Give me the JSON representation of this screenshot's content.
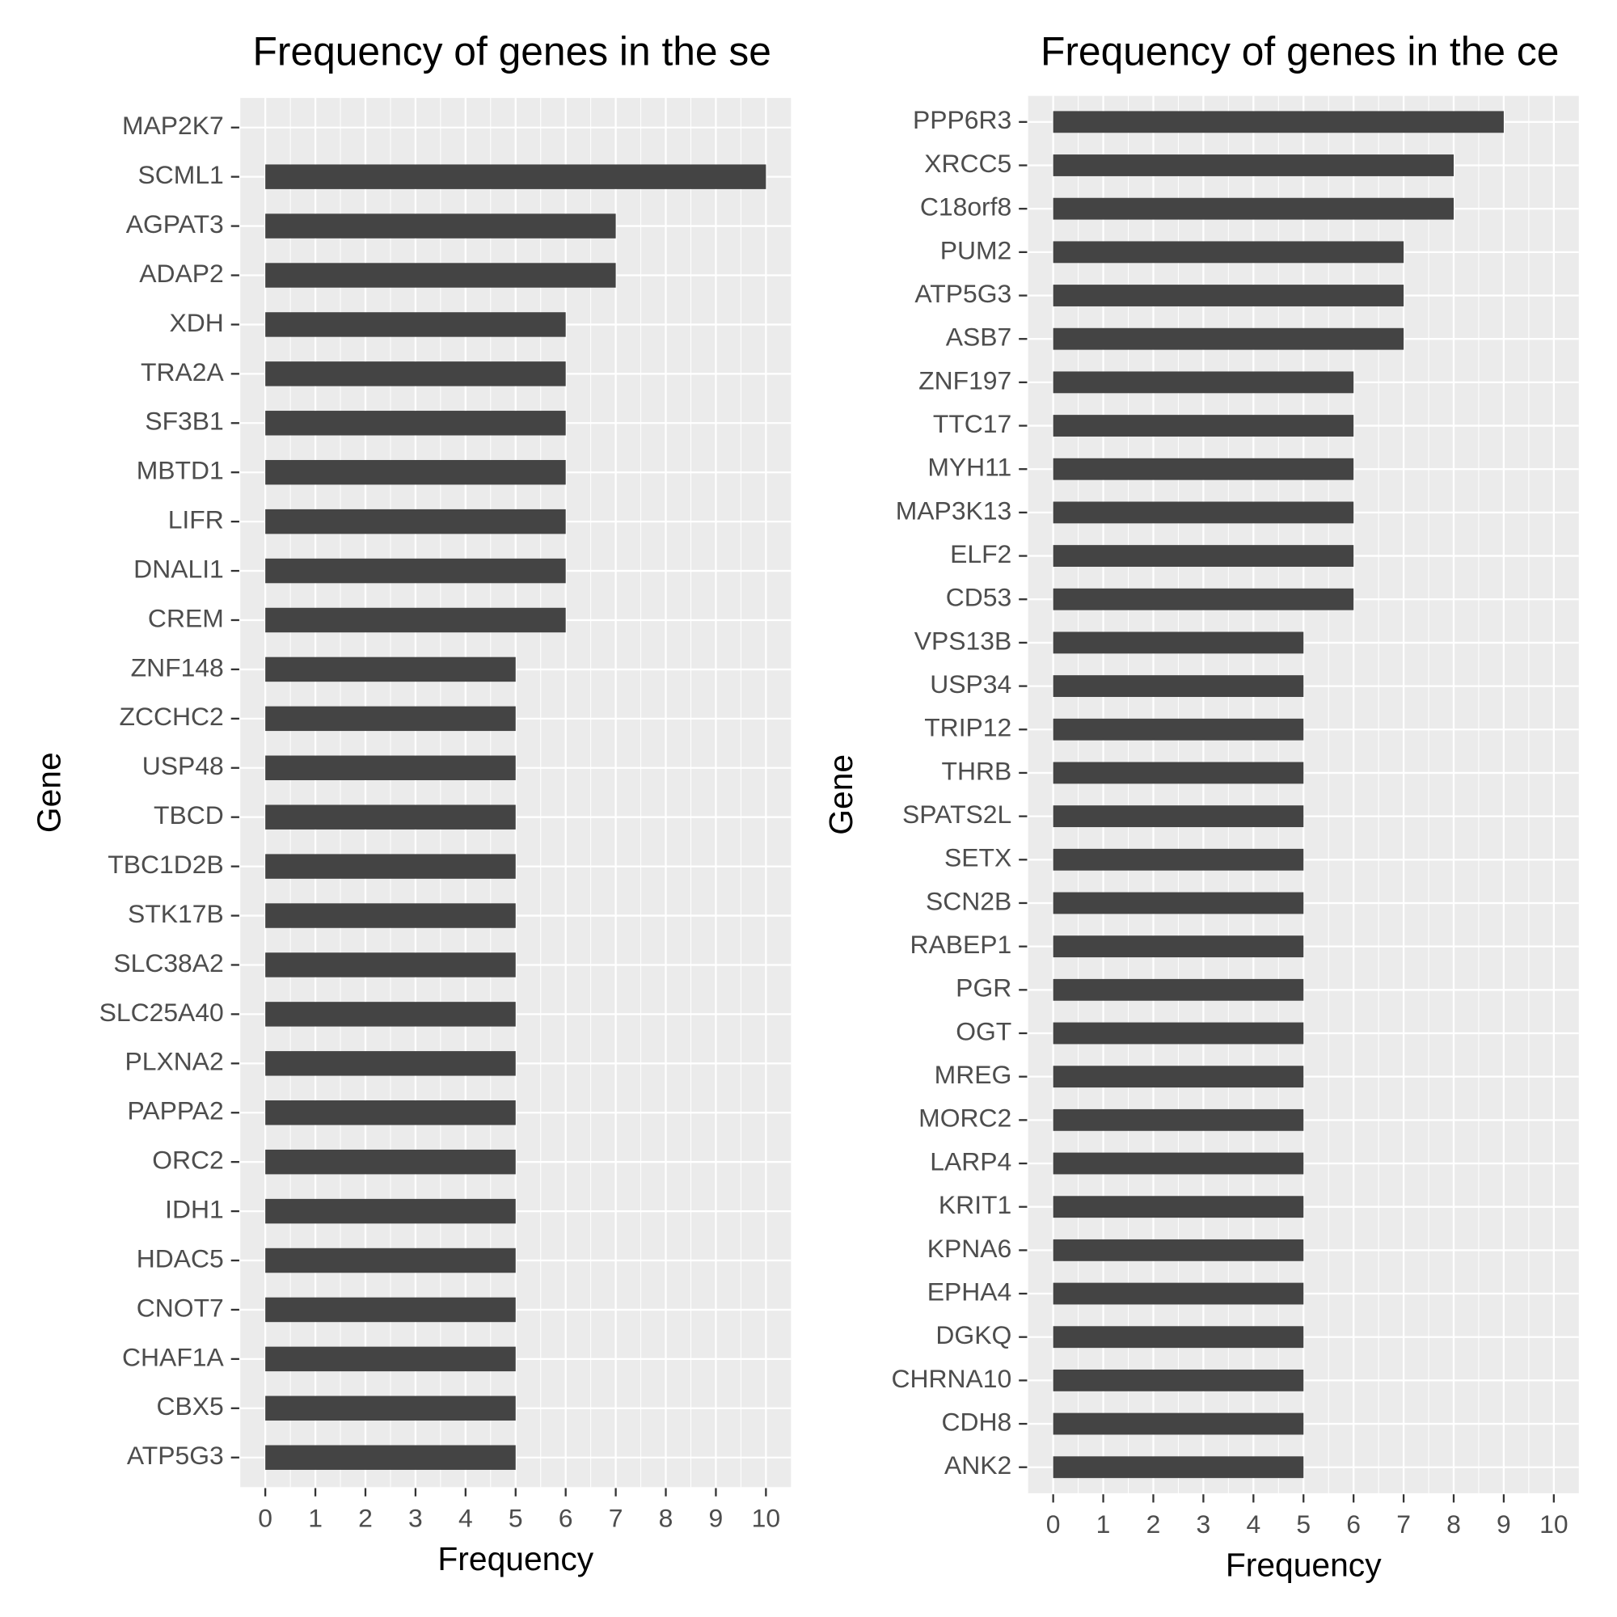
{
  "chart_data": [
    {
      "type": "bar",
      "orientation": "horizontal",
      "title": "Frequency of genes in the se",
      "x_label": "Frequency",
      "y_label": "Gene",
      "categories": [
        "MAP2K7",
        "SCML1",
        "AGPAT3",
        "ADAP2",
        "XDH",
        "TRA2A",
        "SF3B1",
        "MBTD1",
        "LIFR",
        "DNALI1",
        "CREM",
        "ZNF148",
        "ZCCHC2",
        "USP48",
        "TBCD",
        "TBC1D2B",
        "STK17B",
        "SLC38A2",
        "SLC25A40",
        "PLXNA2",
        "PAPPA2",
        "ORC2",
        "IDH1",
        "HDAC5",
        "CNOT7",
        "CHAF1A",
        "CBX5",
        "ATP5G3"
      ],
      "values": [
        0,
        10,
        7,
        7,
        6,
        6,
        6,
        6,
        6,
        6,
        6,
        5,
        5,
        5,
        5,
        5,
        5,
        5,
        5,
        5,
        5,
        5,
        5,
        5,
        5,
        5,
        5,
        5
      ],
      "color": "#444444",
      "xlim": [
        -0.5,
        10.5
      ],
      "xticks": [
        0,
        1,
        2,
        3,
        4,
        5,
        6,
        7,
        8,
        9,
        10
      ],
      "grid": true
    },
    {
      "type": "bar",
      "orientation": "horizontal",
      "title": "Frequency of genes in the ce",
      "x_label": "Frequency",
      "y_label": "Gene",
      "categories": [
        "PPP6R3",
        "XRCC5",
        "C18orf8",
        "PUM2",
        "ATP5G3",
        "ASB7",
        "ZNF197",
        "TTC17",
        "MYH11",
        "MAP3K13",
        "ELF2",
        "CD53",
        "VPS13B",
        "USP34",
        "TRIP12",
        "THRB",
        "SPATS2L",
        "SETX",
        "SCN2B",
        "RABEP1",
        "PGR",
        "OGT",
        "MREG",
        "MORC2",
        "LARP4",
        "KRIT1",
        "KPNA6",
        "EPHA4",
        "DGKQ",
        "CHRNA10",
        "CDH8",
        "ANK2"
      ],
      "values": [
        9,
        8,
        8,
        7,
        7,
        7,
        6,
        6,
        6,
        6,
        6,
        6,
        5,
        5,
        5,
        5,
        5,
        5,
        5,
        5,
        5,
        5,
        5,
        5,
        5,
        5,
        5,
        5,
        5,
        5,
        5,
        5
      ],
      "color": "#444444",
      "xlim": [
        -0.5,
        10.5
      ],
      "xticks": [
        0,
        1,
        2,
        3,
        4,
        5,
        6,
        7,
        8,
        9,
        10
      ],
      "grid": true
    }
  ]
}
